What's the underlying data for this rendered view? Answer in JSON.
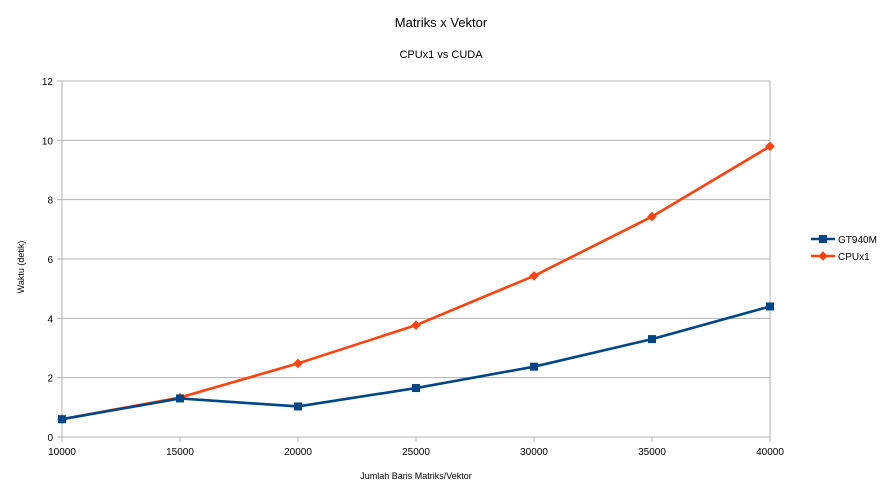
{
  "chart_data": {
    "type": "line",
    "title": "Matriks x Vektor",
    "subtitle": "CPUx1 vs CUDA",
    "xlabel": "Jumlah Baris Matriks/Vektor",
    "ylabel": "Waktu (detik)",
    "x": [
      10000,
      15000,
      20000,
      25000,
      30000,
      35000,
      40000
    ],
    "xlim": [
      10000,
      40000
    ],
    "ylim": [
      0,
      12
    ],
    "yticks": [
      0,
      2,
      4,
      6,
      8,
      10,
      12
    ],
    "grid": "horizontal",
    "legend_position": "right",
    "series": [
      {
        "name": "GT940M",
        "color": "#004586",
        "marker": "square",
        "values": [
          0.6,
          1.3,
          1.03,
          1.65,
          2.37,
          3.3,
          4.4
        ]
      },
      {
        "name": "CPUx1",
        "color": "#ff420e",
        "marker": "diamond",
        "values": [
          0.6,
          1.33,
          2.48,
          3.77,
          5.43,
          7.43,
          9.8
        ]
      }
    ]
  }
}
